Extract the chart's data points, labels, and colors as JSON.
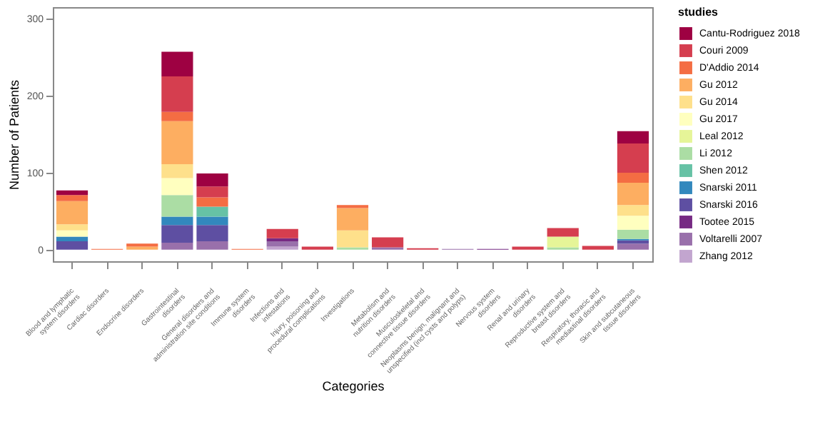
{
  "chart_data": {
    "type": "bar",
    "stacked": true,
    "xlabel": "Categories",
    "ylabel": "Number of Patients",
    "legend_title": "studies",
    "legend": "right",
    "grid": false,
    "categories": [
      "Blood and lymphatic system disorders",
      "Cardiac disorders",
      "Endocrine disorders",
      "Gastrointestinal disorders",
      "General disorders and administration site conditions",
      "Immune system disorders",
      "Infections and infestations",
      "Injury, poisoning and procedural complications",
      "Investigations",
      "Metabolism and nutrition disorders",
      "Musculoskeletal and connective tissue disorders",
      "Neoplasms benign, malignant and unspecified (incl cysts and polyps)",
      "Nervous system disorders",
      "Renal and urinary disorders",
      "Reproductive system and breast disorders",
      "Respiratory, thoracic and mediastinal disorders",
      "Skin and subcutaneous tissue disorders"
    ],
    "ylim": [
      -15,
      315
    ],
    "yticks": [
      0,
      100,
      200,
      300
    ],
    "series": [
      {
        "name": "Zhang 2012",
        "color": "#c2a5cf",
        "values": [
          null,
          null,
          null,
          null,
          null,
          null,
          4,
          null,
          null,
          null,
          null,
          null,
          null,
          null,
          null,
          null,
          null
        ]
      },
      {
        "name": "Voltarelli 2007",
        "color": "#9970ab",
        "values": [
          null,
          null,
          null,
          9,
          11,
          null,
          7,
          null,
          null,
          3,
          null,
          1,
          null,
          null,
          null,
          null,
          8
        ]
      },
      {
        "name": "Tootee 2015",
        "color": "#762a83",
        "values": [
          null,
          null,
          null,
          null,
          null,
          null,
          4,
          null,
          null,
          null,
          null,
          null,
          1,
          null,
          null,
          null,
          null
        ]
      },
      {
        "name": "Snarski 2016",
        "color": "#5e4fa2",
        "values": [
          11,
          null,
          null,
          23,
          21,
          null,
          null,
          null,
          null,
          null,
          null,
          null,
          null,
          null,
          null,
          null,
          4
        ]
      },
      {
        "name": "Snarski 2011",
        "color": "#3288bd",
        "values": [
          6,
          null,
          null,
          11,
          11,
          null,
          null,
          null,
          null,
          null,
          null,
          null,
          null,
          null,
          null,
          null,
          2
        ]
      },
      {
        "name": "Shen 2012",
        "color": "#66c2a5",
        "values": [
          null,
          null,
          null,
          null,
          13,
          null,
          null,
          null,
          null,
          null,
          null,
          null,
          null,
          null,
          null,
          null,
          null
        ]
      },
      {
        "name": "Li 2012",
        "color": "#abdda4",
        "values": [
          null,
          null,
          null,
          28,
          null,
          null,
          null,
          null,
          3,
          null,
          null,
          null,
          null,
          null,
          3,
          null,
          12
        ]
      },
      {
        "name": "Leal 2012",
        "color": "#e6f598",
        "values": [
          null,
          null,
          null,
          null,
          null,
          null,
          null,
          null,
          null,
          null,
          null,
          null,
          null,
          null,
          14,
          null,
          null
        ]
      },
      {
        "name": "Gu 2017",
        "color": "#ffffbf",
        "values": [
          8,
          null,
          null,
          22,
          null,
          null,
          null,
          null,
          null,
          null,
          null,
          null,
          null,
          null,
          null,
          null,
          18
        ]
      },
      {
        "name": "Gu 2014",
        "color": "#fee08b",
        "values": [
          8,
          null,
          null,
          18,
          null,
          null,
          null,
          null,
          22,
          null,
          null,
          null,
          null,
          null,
          null,
          null,
          14
        ]
      },
      {
        "name": "Gu 2012",
        "color": "#fdae61",
        "values": [
          30,
          null,
          4,
          56,
          null,
          null,
          null,
          null,
          29,
          null,
          null,
          null,
          null,
          null,
          null,
          null,
          29
        ]
      },
      {
        "name": "D'Addio 2014",
        "color": "#f46d43",
        "values": [
          8,
          1,
          4,
          12,
          12,
          1,
          null,
          null,
          4,
          null,
          null,
          null,
          null,
          null,
          null,
          null,
          13
        ]
      },
      {
        "name": "Couri 2009",
        "color": "#d53e4f",
        "values": [
          null,
          null,
          null,
          46,
          14,
          null,
          12,
          4,
          null,
          13,
          2,
          null,
          null,
          4,
          11,
          5,
          38
        ]
      },
      {
        "name": "Cantu-Rodriguez 2018",
        "color": "#9e0142",
        "values": [
          6,
          null,
          null,
          32,
          17,
          null,
          null,
          null,
          null,
          null,
          null,
          null,
          null,
          null,
          null,
          null,
          16
        ]
      }
    ]
  }
}
